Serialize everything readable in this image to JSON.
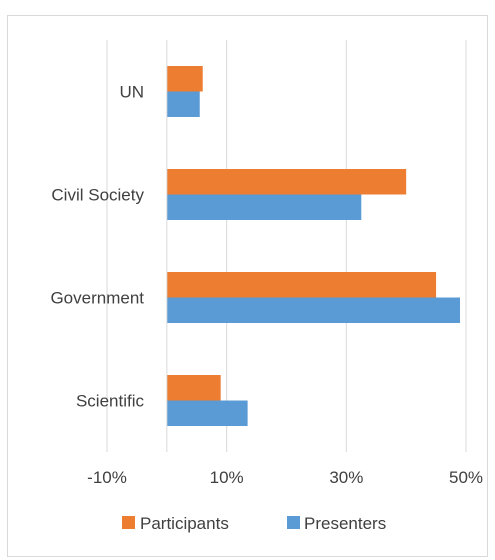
{
  "chart_data": {
    "type": "bar",
    "orientation": "horizontal",
    "categories": [
      "Scientific",
      "Government",
      "Civil Society",
      "UN"
    ],
    "series": [
      {
        "name": "Participants",
        "color": "#ED7D31",
        "values": [
          9,
          45,
          40,
          6
        ]
      },
      {
        "name": "Presenters",
        "color": "#5B9BD5",
        "values": [
          13.5,
          49,
          32.5,
          5.5
        ]
      }
    ],
    "xlim": [
      -10,
      50
    ],
    "x_ticks": [
      -10,
      10,
      30,
      50
    ],
    "x_tick_labels": [
      "-10%",
      "10%",
      "30%",
      "50%"
    ],
    "grid": true,
    "legend_position": "bottom"
  }
}
